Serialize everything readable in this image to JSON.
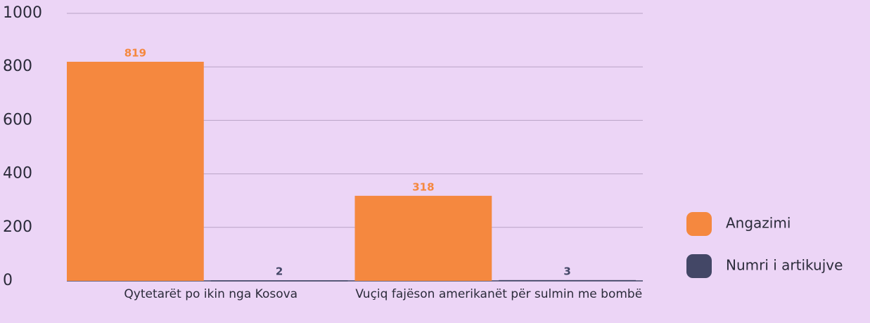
{
  "chart_data": {
    "type": "bar",
    "categories": [
      "Qytetarët po ikin nga Kosova",
      "Vuçiq fajëson amerikanët për sulmin me bombë"
    ],
    "series": [
      {
        "name": "Angazimi",
        "color": "#f5883f",
        "values": [
          819,
          318
        ]
      },
      {
        "name": "Numri i artikujve",
        "color": "#434766",
        "values": [
          2,
          3
        ]
      }
    ],
    "ylim": [
      0,
      1000
    ],
    "yticks": [
      0,
      200,
      400,
      600,
      800,
      1000
    ],
    "grid": true,
    "legend": "right"
  }
}
